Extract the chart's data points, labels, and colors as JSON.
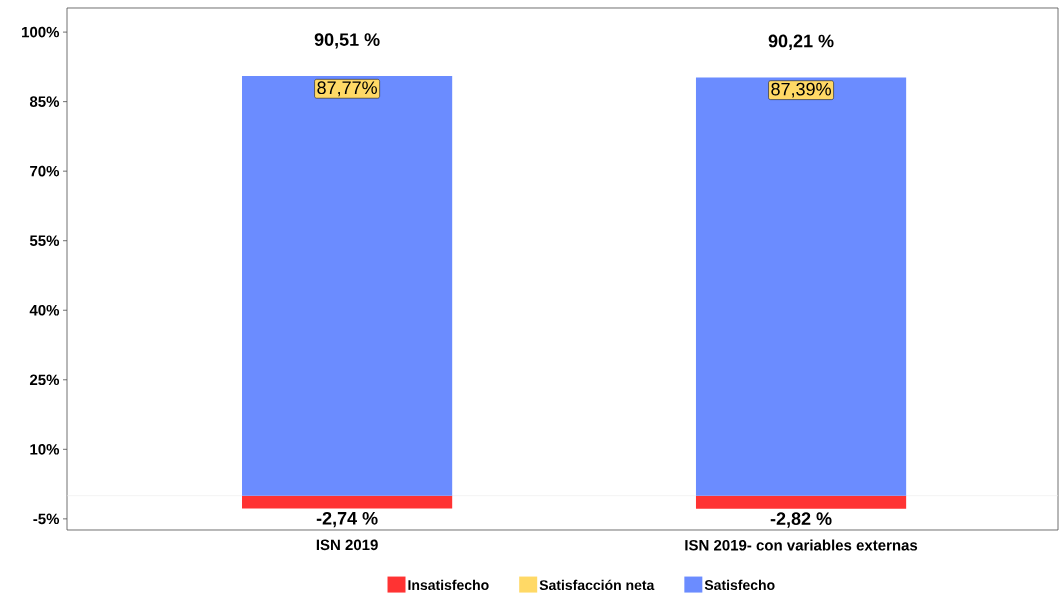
{
  "chart_data": {
    "type": "bar",
    "stacked": true,
    "categories": [
      "ISN 2019",
      "ISN 2019- con variables externas"
    ],
    "series": [
      {
        "name": "Insatisfecho",
        "color": "#ff3333",
        "values": [
          -2.74,
          -2.82
        ],
        "value_labels": [
          "-2,74 %",
          "-2,82 %"
        ]
      },
      {
        "name": "Satisfacción neta",
        "type": "scatter",
        "color": "#ffd966",
        "values": [
          null,
          null
        ]
      },
      {
        "name": "Satisfecho",
        "color": "#6b8cff",
        "values": [
          90.51,
          90.21
        ],
        "value_labels": [
          "90,51 %",
          "90,21 %"
        ]
      }
    ],
    "ylim": [
      -7.4,
      105.2
    ],
    "yticks": [
      {
        "value": -5,
        "label": "-5%"
      },
      {
        "value": 10,
        "label": "10%"
      },
      {
        "value": 25,
        "label": "25%"
      },
      {
        "value": 40,
        "label": "40%"
      },
      {
        "value": 55,
        "label": "55%"
      },
      {
        "value": 70,
        "label": "70%"
      },
      {
        "value": 85,
        "label": "85%"
      },
      {
        "value": 100,
        "label": "100%"
      }
    ],
    "annotations": [
      "87,77%",
      "87,39%"
    ],
    "ref_lines": [
      {
        "axis": "y",
        "value": 0,
        "color": "#ebebeb"
      }
    ],
    "grid": false,
    "legend": "bottom"
  }
}
